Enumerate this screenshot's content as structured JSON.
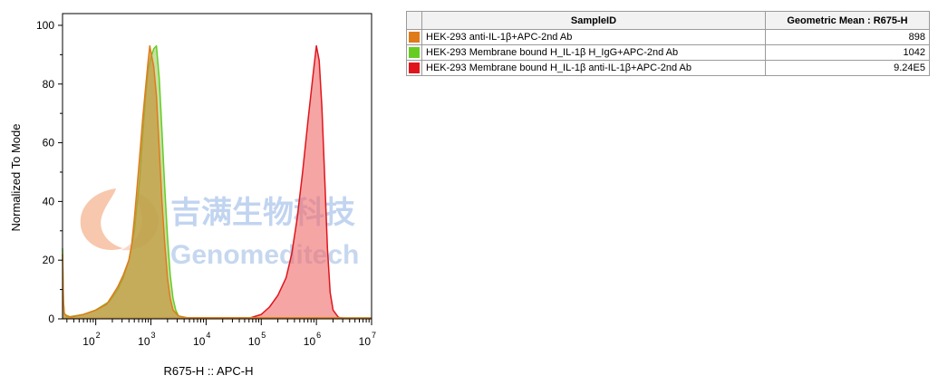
{
  "watermark": {
    "chinese": "吉满生物科技",
    "english": "Genomeditech"
  },
  "table": {
    "headers": [
      "SampleID",
      "Geometric Mean : R675-H"
    ],
    "rows": [
      {
        "color": "#e07b1a",
        "sample": "HEK-293 anti-IL-1β+APC-2nd Ab",
        "value": "898"
      },
      {
        "color": "#66cc22",
        "sample": "HEK-293 Membrane bound H_IL-1β H_IgG+APC-2nd Ab",
        "value": "1042"
      },
      {
        "color": "#e0151b",
        "sample": "HEK-293 Membrane bound H_IL-1β anti-IL-1β+APC-2nd Ab",
        "value": "9.24E5"
      }
    ]
  },
  "chart_data": {
    "type": "area",
    "title": "",
    "xlabel": "R675-H :: APC-H",
    "ylabel": "Normalized To Mode",
    "x_scale": "log",
    "xlim": [
      25,
      10000000
    ],
    "ylim": [
      0,
      104
    ],
    "y_ticks": [
      0,
      20,
      40,
      60,
      80,
      100
    ],
    "x_ticks": [
      {
        "base": "10",
        "exp": "2",
        "value": 100
      },
      {
        "base": "10",
        "exp": "3",
        "value": 1000
      },
      {
        "base": "10",
        "exp": "4",
        "value": 10000
      },
      {
        "base": "10",
        "exp": "5",
        "value": 100000
      },
      {
        "base": "10",
        "exp": "6",
        "value": 1000000
      },
      {
        "base": "10",
        "exp": "7",
        "value": 10000000
      }
    ],
    "grid": false,
    "series": [
      {
        "name": "HEK-293 Membrane bound H_IL-1β anti-IL-1β+APC-2nd Ab",
        "color": "#e0151b",
        "fill": "rgba(240,110,110,0.62)",
        "points": [
          [
            25,
            0.2
          ],
          [
            63000,
            0.3
          ],
          [
            100000,
            1.5
          ],
          [
            141000,
            4
          ],
          [
            200000,
            8
          ],
          [
            282000,
            14
          ],
          [
            355000,
            22
          ],
          [
            447000,
            34
          ],
          [
            562000,
            50
          ],
          [
            708000,
            68
          ],
          [
            891000,
            85
          ],
          [
            1000000,
            93
          ],
          [
            1122000,
            88
          ],
          [
            1259000,
            72
          ],
          [
            1413000,
            48
          ],
          [
            1585000,
            24
          ],
          [
            1778000,
            9
          ],
          [
            2000000,
            3
          ],
          [
            2512000,
            0.5
          ],
          [
            3162000,
            0.2
          ],
          [
            10000000,
            0.2
          ]
        ]
      },
      {
        "name": "HEK-293 Membrane bound H_IL-1β H_IgG+APC-2nd Ab",
        "color": "#66cc22",
        "fill": "rgba(150,200,90,0.55)",
        "points": [
          [
            25,
            24
          ],
          [
            26,
            6
          ],
          [
            27,
            2
          ],
          [
            30,
            0.6
          ],
          [
            60,
            1.5
          ],
          [
            100,
            3
          ],
          [
            178,
            6
          ],
          [
            251,
            10
          ],
          [
            316,
            14
          ],
          [
            398,
            20
          ],
          [
            501,
            30
          ],
          [
            631,
            48
          ],
          [
            708,
            62
          ],
          [
            794,
            75
          ],
          [
            891,
            85
          ],
          [
            1000,
            89
          ],
          [
            1122,
            92
          ],
          [
            1259,
            93
          ],
          [
            1413,
            82
          ],
          [
            1585,
            64
          ],
          [
            1778,
            45
          ],
          [
            1995,
            28
          ],
          [
            2239,
            15
          ],
          [
            2512,
            7
          ],
          [
            2818,
            3
          ],
          [
            3162,
            1
          ],
          [
            4467,
            0.4
          ],
          [
            10000000,
            0.3
          ]
        ]
      },
      {
        "name": "HEK-293 anti-IL-1β+APC-2nd Ab",
        "color": "#e07b1a",
        "fill": "rgba(196,150,60,0.7)",
        "points": [
          [
            25,
            22
          ],
          [
            26,
            6
          ],
          [
            27,
            1.5
          ],
          [
            35,
            0.6
          ],
          [
            60,
            1.5
          ],
          [
            100,
            3
          ],
          [
            158,
            5
          ],
          [
            200,
            8
          ],
          [
            251,
            11
          ],
          [
            316,
            15
          ],
          [
            398,
            20
          ],
          [
            447,
            25
          ],
          [
            501,
            34
          ],
          [
            562,
            45
          ],
          [
            631,
            56
          ],
          [
            708,
            68
          ],
          [
            794,
            78
          ],
          [
            891,
            88
          ],
          [
            955,
            93
          ],
          [
            1000,
            91
          ],
          [
            1122,
            86
          ],
          [
            1259,
            76
          ],
          [
            1413,
            58
          ],
          [
            1585,
            40
          ],
          [
            1778,
            26
          ],
          [
            1995,
            14
          ],
          [
            2239,
            7
          ],
          [
            2512,
            3
          ],
          [
            3162,
            1
          ],
          [
            4467,
            0.4
          ],
          [
            10000000,
            0.3
          ]
        ]
      }
    ]
  }
}
